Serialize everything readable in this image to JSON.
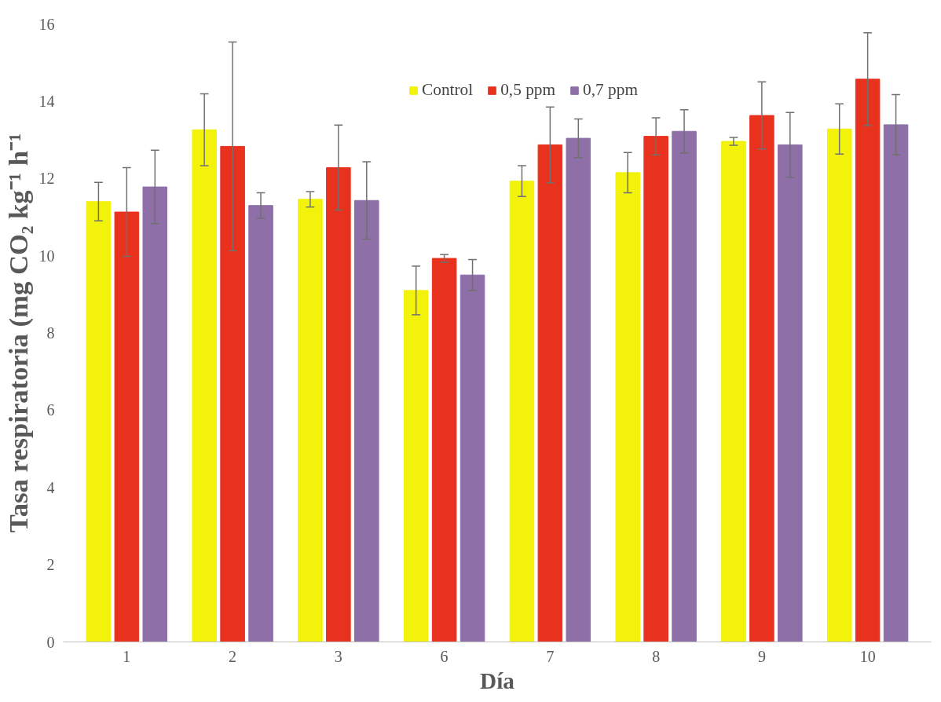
{
  "chart_data": {
    "type": "bar",
    "xlabel": "Día",
    "ylabel": "Tasa respiratoria (mg CO₂ kg⁻¹ h⁻¹",
    "categories": [
      "1",
      "2",
      "3",
      "6",
      "7",
      "8",
      "9",
      "10"
    ],
    "ylim": [
      0,
      16
    ],
    "yticks": [
      0,
      2,
      4,
      6,
      8,
      10,
      12,
      14,
      16
    ],
    "grid": false,
    "legend": "top",
    "series": [
      {
        "name": "Control",
        "color": "#f2f20a",
        "values": [
          11.4,
          13.26,
          11.46,
          9.1,
          11.93,
          12.15,
          12.96,
          13.28
        ],
        "errors": [
          0.5,
          0.93,
          0.2,
          0.63,
          0.4,
          0.52,
          0.1,
          0.65
        ]
      },
      {
        "name": "0,5 ppm",
        "color": "#e8321e",
        "values": [
          11.13,
          12.83,
          12.28,
          9.93,
          12.87,
          13.09,
          13.63,
          14.57
        ],
        "errors": [
          1.15,
          2.7,
          1.1,
          0.1,
          0.98,
          0.48,
          0.87,
          1.2
        ]
      },
      {
        "name": "0,7 ppm",
        "color": "#8e6fa8",
        "values": [
          11.78,
          11.3,
          11.43,
          9.5,
          13.04,
          13.22,
          12.87,
          13.39
        ],
        "errors": [
          0.95,
          0.33,
          1.0,
          0.4,
          0.5,
          0.56,
          0.84,
          0.78
        ]
      }
    ]
  }
}
